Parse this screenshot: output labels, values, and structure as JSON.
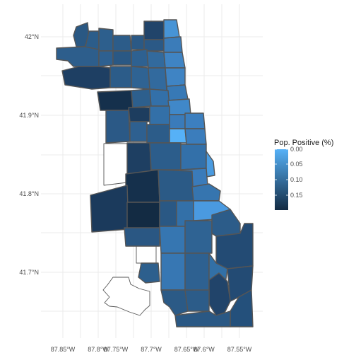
{
  "chart_data": {
    "type": "choropleth",
    "x_ticks": [
      "87.85°W",
      "87.8°W",
      "87.75°W",
      "87.7°W",
      "87.65°W",
      "87.6°W",
      "87.55°W"
    ],
    "y_ticks": [
      "42°N",
      "41.9°N",
      "41.8°N",
      "41.7°N"
    ],
    "grid": true,
    "legend": {
      "title": "Pop. Positive (%)",
      "placement": "right",
      "ticks": [
        "0.00",
        "0.05",
        "0.10",
        "0.15"
      ],
      "value_range": [
        0.0,
        0.17
      ],
      "color_low": "#56B1F7",
      "color_high": "#132B43"
    },
    "missing_areas": "no data (white fill)",
    "regions_shown": 56
  }
}
